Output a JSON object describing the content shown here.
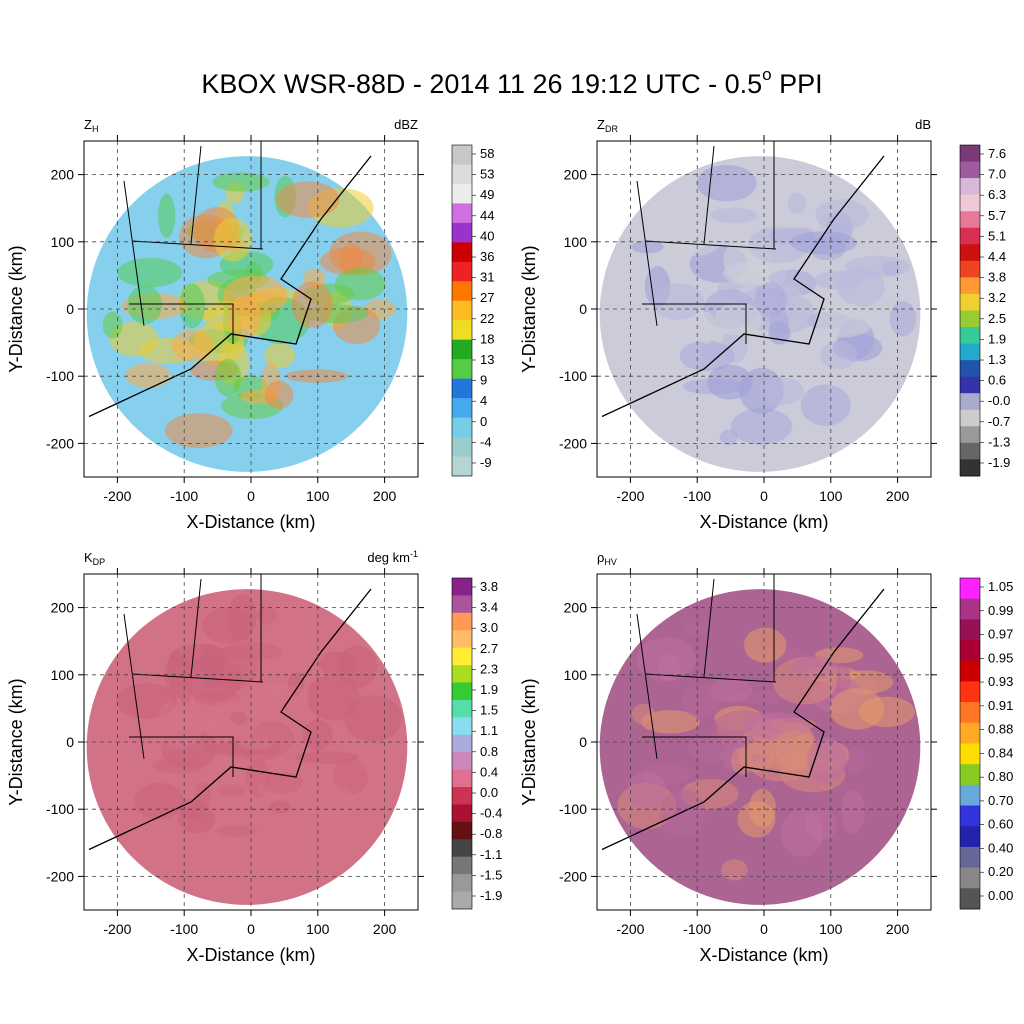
{
  "title": {
    "main": "KBOX WSR-88D - 2014 11 26 19:12 UTC - 0.5",
    "degree": "o",
    "suffix": "PPI"
  },
  "chart_data": [
    {
      "type": "heatmap",
      "field": "Z",
      "field_sub": "H",
      "units": "dBZ",
      "xlabel": "X-Distance (km)",
      "ylabel": "Y-Distance (km)",
      "xlim": [
        -250,
        250
      ],
      "ylim": [
        -250,
        250
      ],
      "xticks": [
        -200,
        -100,
        0,
        100,
        200
      ],
      "yticks": [
        -200,
        -100,
        0,
        100,
        200
      ],
      "grid": true,
      "colorbar_labels": [
        "58",
        "53",
        "49",
        "44",
        "40",
        "36",
        "31",
        "27",
        "22",
        "18",
        "13",
        "9",
        "4",
        "0",
        "-4",
        "-9"
      ],
      "colorbar_colors": [
        "#c8c8c8",
        "#dcdcdc",
        "#ececec",
        "#d070e0",
        "#9933cc",
        "#cc0000",
        "#ee2222",
        "#ff7700",
        "#ffbb22",
        "#eedd22",
        "#22aa22",
        "#55cc44",
        "#2277dd",
        "#44aaee",
        "#77cce8",
        "#99cccc",
        "#b5d5d5"
      ],
      "fill_colors": [
        "#7fcdec",
        "#55cc55",
        "#66cc44",
        "#eecc33",
        "#ffaa44",
        "#ee8844"
      ]
    },
    {
      "type": "heatmap",
      "field": "Z",
      "field_sub": "DR",
      "units": "dB",
      "xlabel": "X-Distance (km)",
      "ylabel": "Y-Distance (km)",
      "xlim": [
        -250,
        250
      ],
      "ylim": [
        -250,
        250
      ],
      "xticks": [
        -200,
        -100,
        0,
        100,
        200
      ],
      "yticks": [
        -200,
        -100,
        0,
        100,
        200
      ],
      "grid": true,
      "colorbar_labels": [
        "7.6",
        "7.0",
        "6.3",
        "5.7",
        "5.1",
        "4.4",
        "3.8",
        "3.2",
        "2.5",
        "1.9",
        "1.3",
        "0.6",
        "-0.0",
        "-0.7",
        "-1.3",
        "-1.9"
      ],
      "colorbar_colors": [
        "#7a3a7a",
        "#a05aa0",
        "#d8b8d8",
        "#f0c8d8",
        "#e87898",
        "#d83050",
        "#cc1111",
        "#ee4422",
        "#ff9933",
        "#f0d030",
        "#99cc33",
        "#33cc99",
        "#22aacc",
        "#2255aa",
        "#3333aa",
        "#aaaacc",
        "#cccccc",
        "#999999",
        "#666666",
        "#333333"
      ],
      "fill_colors": [
        "#c8c8d8",
        "#b8b8dc",
        "#aaaadd",
        "#9f9fd8",
        "#d0d0d8"
      ]
    },
    {
      "type": "heatmap",
      "field": "K",
      "field_sub": "DP",
      "units": "deg km",
      "units_sup": "-1",
      "xlabel": "X-Distance (km)",
      "ylabel": "Y-Distance (km)",
      "xlim": [
        -250,
        250
      ],
      "ylim": [
        -250,
        250
      ],
      "xticks": [
        -200,
        -100,
        0,
        100,
        200
      ],
      "yticks": [
        -200,
        -100,
        0,
        100,
        200
      ],
      "grid": true,
      "colorbar_labels": [
        "3.8",
        "3.4",
        "3.0",
        "2.7",
        "2.3",
        "1.9",
        "1.5",
        "1.1",
        "0.8",
        "0.4",
        "0.0",
        "-0.4",
        "-0.8",
        "-1.1",
        "-1.5",
        "-1.9"
      ],
      "colorbar_colors": [
        "#882288",
        "#aa5599",
        "#ff9955",
        "#ffbb66",
        "#ffee33",
        "#aadd22",
        "#33cc33",
        "#55ddaa",
        "#88ddee",
        "#aaaadd",
        "#cc88bb",
        "#e07090",
        "#cc3355",
        "#aa1133",
        "#661111",
        "#444444",
        "#777777",
        "#999999",
        "#aaaaaa"
      ],
      "fill_colors": [
        "#d06a80",
        "#cc6679",
        "#d47488",
        "#c9627a"
      ]
    },
    {
      "type": "heatmap",
      "field": "ρ",
      "field_sub": "HV",
      "units": "",
      "xlabel": "X-Distance (km)",
      "ylabel": "Y-Distance (km)",
      "xlim": [
        -250,
        250
      ],
      "ylim": [
        -250,
        250
      ],
      "xticks": [
        -200,
        -100,
        0,
        100,
        200
      ],
      "yticks": [
        -200,
        -100,
        0,
        100,
        200
      ],
      "grid": true,
      "colorbar_labels": [
        "1.05",
        "0.99",
        "0.97",
        "0.95",
        "0.93",
        "0.91",
        "0.88",
        "0.84",
        "0.80",
        "0.70",
        "0.60",
        "0.40",
        "0.20",
        "0.00"
      ],
      "colorbar_colors": [
        "#ff22ff",
        "#aa3388",
        "#991155",
        "#aa0033",
        "#cc0000",
        "#ff3311",
        "#ff7722",
        "#ffaa22",
        "#ffdd00",
        "#88cc22",
        "#66aadd",
        "#3333dd",
        "#2222aa",
        "#666699",
        "#888888",
        "#555555"
      ],
      "fill_colors": [
        "#a85c8c",
        "#b76a98",
        "#c070a0",
        "#e89a6a",
        "#d88a78"
      ]
    }
  ]
}
